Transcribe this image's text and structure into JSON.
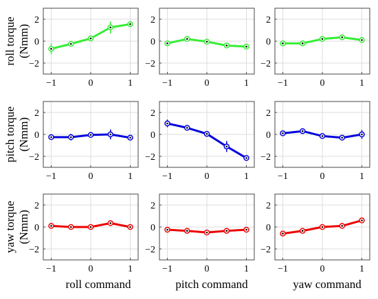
{
  "x_label_list": [
    "roll command",
    "pitch command",
    "yaw command"
  ],
  "y_label_list": [
    [
      "roll torque",
      "(Nmm)"
    ],
    [
      "pitch torque",
      "(Nmm)"
    ],
    [
      "yaw torque",
      "(Nmm)"
    ]
  ],
  "chart_data": {
    "type": "line",
    "grid": true,
    "xlim": [
      -1.2,
      1.2
    ],
    "ylim": [
      -3,
      3
    ],
    "x_ticks": [
      -1,
      0,
      1
    ],
    "x_tick_labels": [
      "−1",
      "0",
      "1"
    ],
    "y_ticks": [
      -2,
      0,
      2
    ],
    "y_tick_labels": [
      "−2",
      "0",
      "2"
    ],
    "x": [
      -1,
      -0.5,
      0,
      0.5,
      1
    ],
    "row_colors": [
      "#33ee33",
      "#0000dd",
      "#ee0000"
    ],
    "rows": [
      {
        "torque": "roll torque",
        "panels": [
          {
            "command": "roll command",
            "values": [
              -0.7,
              -0.25,
              0.25,
              1.25,
              1.55
            ],
            "errors": [
              0.5,
              0.15,
              0.1,
              0.55,
              0.1
            ]
          },
          {
            "command": "pitch command",
            "values": [
              -0.2,
              0.2,
              -0.05,
              -0.4,
              -0.5
            ],
            "errors": [
              0.1,
              0.1,
              0.1,
              0.1,
              0.1
            ]
          },
          {
            "command": "yaw command",
            "values": [
              -0.2,
              -0.2,
              0.2,
              0.35,
              0.1
            ],
            "errors": [
              0.1,
              0.1,
              0.1,
              0.2,
              0.1
            ]
          }
        ]
      },
      {
        "torque": "pitch torque",
        "panels": [
          {
            "command": "roll command",
            "values": [
              -0.25,
              -0.25,
              -0.05,
              0.0,
              -0.3
            ],
            "errors": [
              0.1,
              0.3,
              0.1,
              0.45,
              0.2
            ]
          },
          {
            "command": "pitch command",
            "values": [
              1.0,
              0.6,
              0.05,
              -1.1,
              -2.15
            ],
            "errors": [
              0.35,
              0.1,
              0.2,
              0.5,
              0.15
            ]
          },
          {
            "command": "yaw command",
            "values": [
              0.1,
              0.3,
              -0.15,
              -0.3,
              0.0
            ],
            "errors": [
              0.1,
              0.1,
              0.1,
              0.1,
              0.4
            ]
          }
        ]
      },
      {
        "torque": "yaw torque",
        "panels": [
          {
            "command": "roll command",
            "values": [
              0.1,
              0.0,
              0.0,
              0.35,
              0.0
            ],
            "errors": [
              0.1,
              0.1,
              0.1,
              0.1,
              0.1
            ]
          },
          {
            "command": "pitch command",
            "values": [
              -0.25,
              -0.35,
              -0.5,
              -0.35,
              -0.25
            ],
            "errors": [
              0.1,
              0.1,
              0.15,
              0.1,
              0.1
            ]
          },
          {
            "command": "yaw command",
            "values": [
              -0.6,
              -0.35,
              0.0,
              0.1,
              0.6
            ],
            "errors": [
              0.1,
              0.1,
              0.1,
              0.1,
              0.1
            ]
          }
        ]
      }
    ]
  }
}
